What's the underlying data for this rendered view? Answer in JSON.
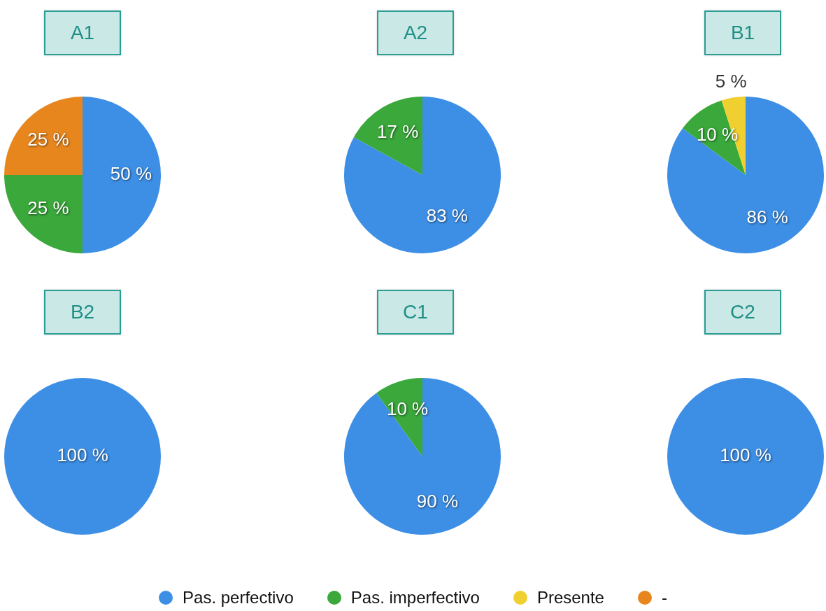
{
  "chart_data": [
    {
      "type": "pie",
      "title": "A1",
      "legend": "bottom",
      "categories": [
        "Pas. perfectivo",
        "Pas. imperfectivo",
        "Presente",
        "-"
      ],
      "values": [
        50,
        25,
        0,
        25
      ],
      "colors": [
        "#3d8fe6",
        "#3aa83a",
        "#f0d030",
        "#e8861e"
      ],
      "value_labels": [
        "50 %",
        "25 %",
        null,
        "25 %"
      ]
    },
    {
      "type": "pie",
      "title": "A2",
      "categories": [
        null,
        null
      ],
      "values": [
        83,
        17
      ],
      "colors": [
        "#3d8fe6",
        "#3aa83a"
      ],
      "value_labels": [
        "83 %",
        "17 %"
      ]
    },
    {
      "type": "pie",
      "title": "B1",
      "categories": [
        null,
        null,
        null
      ],
      "values": [
        86,
        10,
        5
      ],
      "colors": [
        "#3d8fe6",
        "#3aa83a",
        "#f0d030"
      ],
      "value_labels": [
        "86 %",
        "10 %",
        "5 %"
      ]
    },
    {
      "type": "pie",
      "title": "B2",
      "categories": [
        null
      ],
      "values": [
        100
      ],
      "colors": [
        "#3d8fe6"
      ],
      "value_labels": [
        "100 %"
      ]
    },
    {
      "type": "pie",
      "title": "C1",
      "categories": [
        null,
        null
      ],
      "values": [
        90,
        10
      ],
      "colors": [
        "#3d8fe6",
        "#3aa83a"
      ],
      "value_labels": [
        "90 %",
        "10 %"
      ]
    },
    {
      "type": "pie",
      "title": "C2",
      "categories": [
        null
      ],
      "values": [
        100
      ],
      "colors": [
        "#3d8fe6"
      ],
      "value_labels": [
        "100 %"
      ]
    }
  ]
}
